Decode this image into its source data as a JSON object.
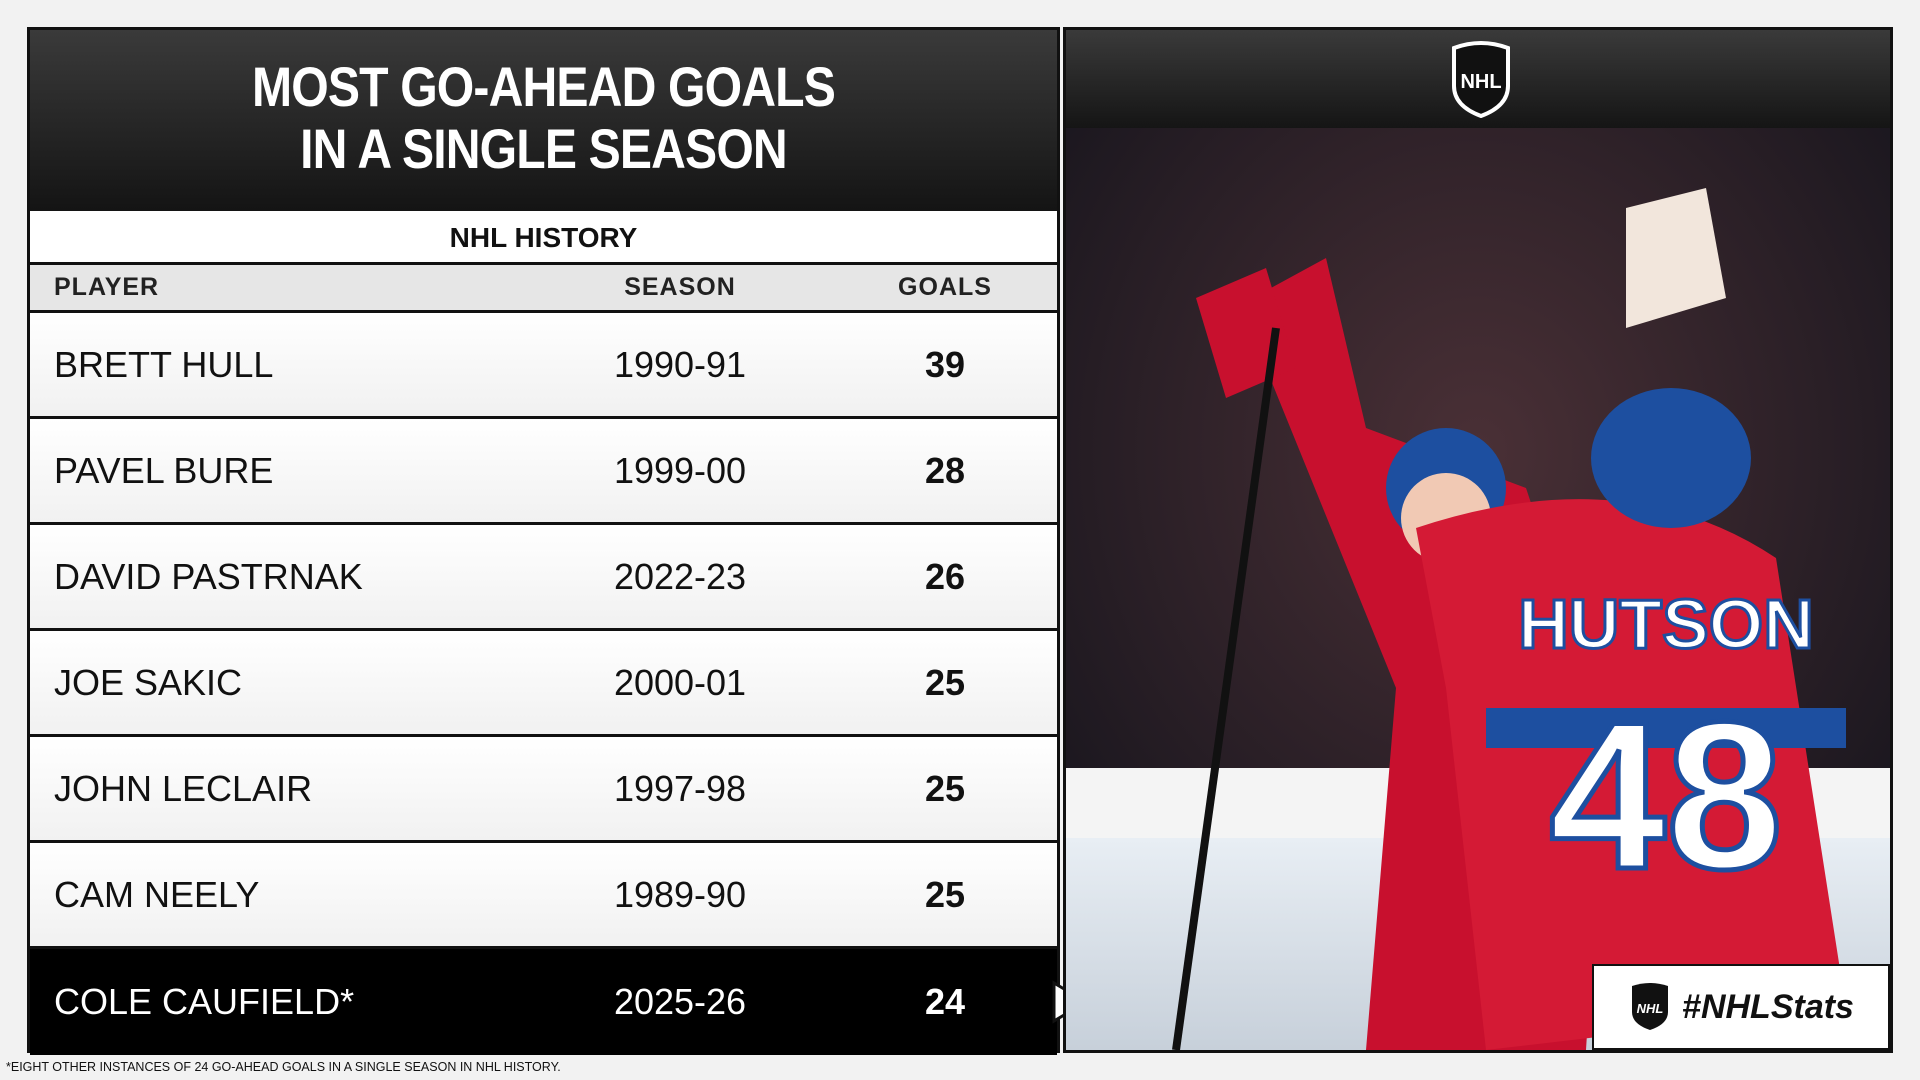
{
  "header": {
    "title_lines": [
      "MOST GO-AHEAD GOALS",
      "IN A SINGLE SEASON"
    ],
    "subtitle": "NHL HISTORY"
  },
  "table": {
    "columns": [
      "PLAYER",
      "SEASON",
      "GOALS"
    ],
    "rows": [
      [
        "BRETT HULL",
        "1990-91",
        "39"
      ],
      [
        "PAVEL BURE",
        "1999-00",
        "28"
      ],
      [
        "DAVID PASTRNAK",
        "2022-23",
        "26"
      ],
      [
        "JOE SAKIC",
        "2000-01",
        "25"
      ],
      [
        "JOHN LECLAIR",
        "1997-98",
        "25"
      ],
      [
        "CAM NEELY",
        "1989-90",
        "25"
      ],
      [
        "COLE CAUFIELD*",
        "2025-26",
        "24"
      ]
    ]
  },
  "footnote": "*EIGHT OTHER INSTANCES OF 24 GO-AHEAD GOALS IN  A SINGLE SEASON IN NHL HISTORY.",
  "logo": "NHL",
  "photo": {
    "jersey_name": "HUTSON",
    "jersey_number": "48"
  },
  "hashtag": "#NHLStats"
}
